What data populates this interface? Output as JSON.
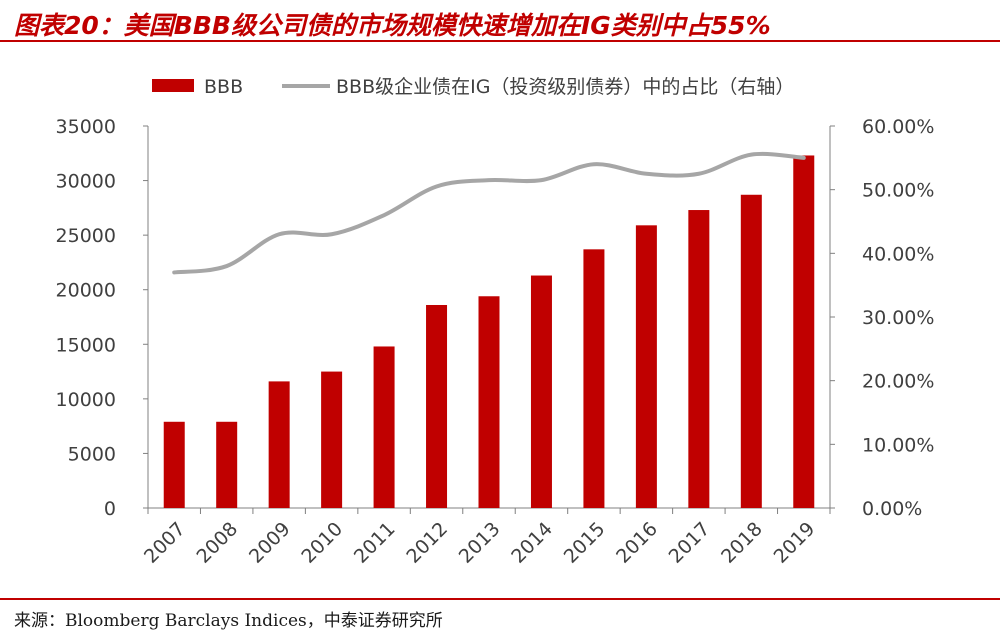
{
  "title": "图表20：美国BBB级公司债的市场规模快速增加在IG类别中占55%",
  "source": "来源：Bloomberg Barclays Indices，中泰证券研究所",
  "colors": {
    "bar": "#c00000",
    "line": "#a6a6a6",
    "axis": "#808080",
    "text": "#404040",
    "accent": "#c00000"
  },
  "chart_data": {
    "type": "bar",
    "categories": [
      "2007",
      "2008",
      "2009",
      "2010",
      "2011",
      "2012",
      "2013",
      "2014",
      "2015",
      "2016",
      "2017",
      "2018",
      "2019"
    ],
    "series": [
      {
        "name": "BBB",
        "type": "bar",
        "axis": "left",
        "values": [
          7900,
          7900,
          11600,
          12500,
          14800,
          18600,
          19400,
          21300,
          23700,
          25900,
          27300,
          28700,
          32300
        ]
      },
      {
        "name": "BBB级企业债在IG（投资级别债券）中的占比（右轴）",
        "type": "line",
        "axis": "right",
        "values": [
          37.0,
          38.0,
          43.0,
          43.0,
          46.0,
          50.5,
          51.5,
          51.5,
          54.0,
          52.5,
          52.5,
          55.5,
          55.0
        ]
      }
    ],
    "left_axis": {
      "ylim": [
        0,
        35000
      ],
      "ticks": [
        "0",
        "5000",
        "10000",
        "15000",
        "20000",
        "25000",
        "30000",
        "35000"
      ]
    },
    "right_axis": {
      "ylim": [
        0,
        60
      ],
      "ticks": [
        "0.00%",
        "10.00%",
        "20.00%",
        "30.00%",
        "40.00%",
        "50.00%",
        "60.00%"
      ]
    },
    "legend_position": "top",
    "grid": false
  }
}
